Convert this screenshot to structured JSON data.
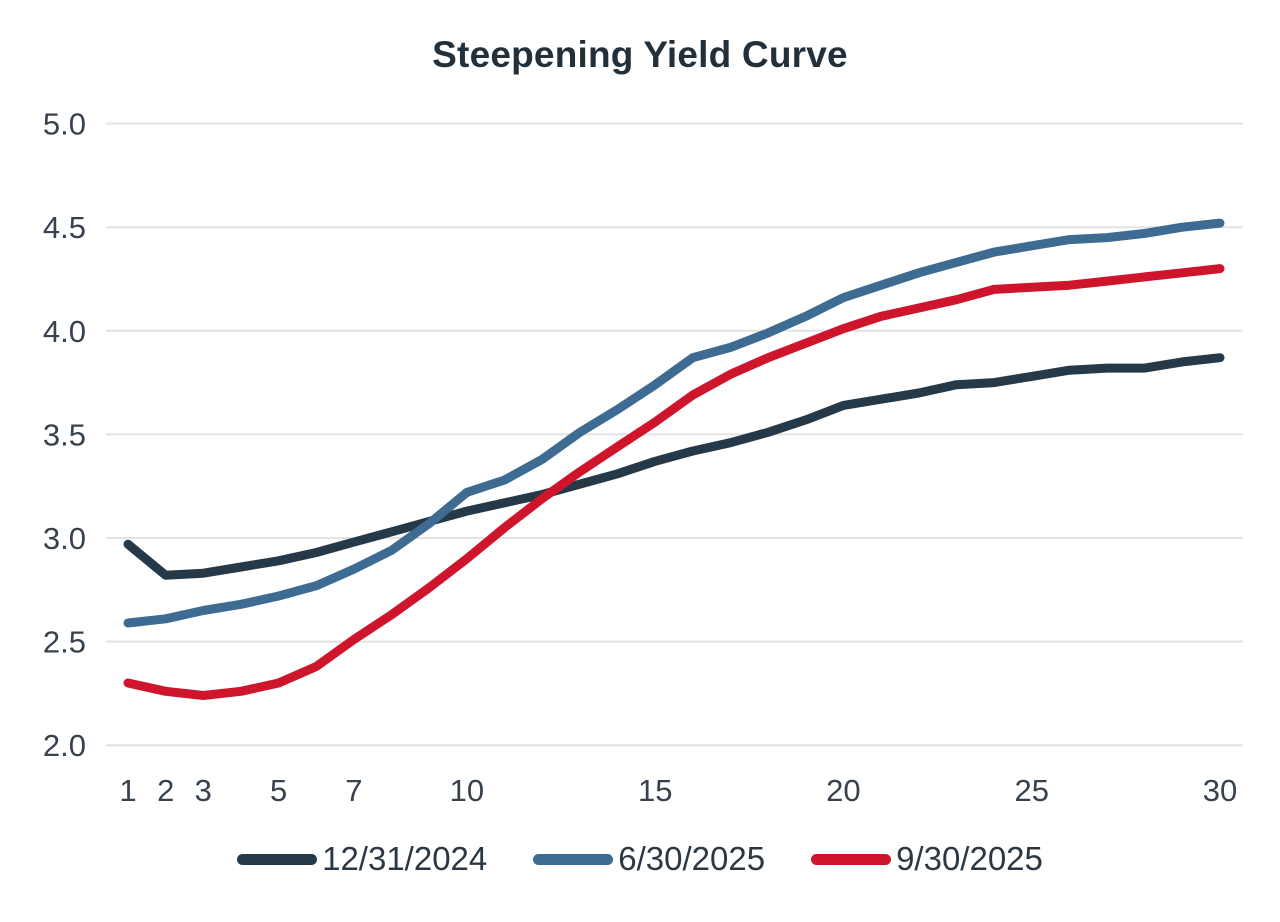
{
  "title": "Steepening Yield Curve",
  "colors": {
    "background": "#ffffff",
    "title_text": "#22303c",
    "axis_label_text": "#38424e",
    "gridline": "#e3e3e3",
    "legend_text": "#2b3844"
  },
  "chart_data": {
    "type": "line",
    "title": "Steepening Yield Curve",
    "xlabel": "",
    "ylabel": "",
    "xlim": [
      1,
      30
    ],
    "ylim": [
      2.0,
      5.0
    ],
    "grid": "horizontal-only",
    "legend_position": "bottom",
    "x_ticks": [
      1,
      2,
      3,
      5,
      7,
      10,
      15,
      20,
      25,
      30
    ],
    "y_ticks": [
      5.0,
      4.5,
      4.0,
      3.5,
      3.0,
      2.5,
      2.0
    ],
    "x": [
      1,
      2,
      3,
      4,
      5,
      6,
      7,
      8,
      9,
      10,
      11,
      12,
      13,
      14,
      15,
      16,
      17,
      18,
      19,
      20,
      21,
      22,
      23,
      24,
      25,
      26,
      27,
      28,
      29,
      30
    ],
    "series": [
      {
        "name": "12/31/2024",
        "color": "#263949",
        "values": [
          2.97,
          2.82,
          2.83,
          2.86,
          2.89,
          2.93,
          2.98,
          3.03,
          3.08,
          3.13,
          3.17,
          3.21,
          3.26,
          3.31,
          3.37,
          3.42,
          3.46,
          3.51,
          3.57,
          3.64,
          3.67,
          3.7,
          3.74,
          3.75,
          3.78,
          3.81,
          3.82,
          3.82,
          3.85,
          3.87
        ]
      },
      {
        "name": "6/30/2025",
        "color": "#3e6b92",
        "values": [
          2.59,
          2.61,
          2.65,
          2.68,
          2.72,
          2.77,
          2.85,
          2.94,
          3.07,
          3.22,
          3.28,
          3.38,
          3.51,
          3.62,
          3.74,
          3.87,
          3.92,
          3.99,
          4.07,
          4.16,
          4.22,
          4.28,
          4.33,
          4.38,
          4.41,
          4.44,
          4.45,
          4.47,
          4.5,
          4.52
        ]
      },
      {
        "name": "9/30/2025",
        "color": "#cf152c",
        "values": [
          2.3,
          2.26,
          2.24,
          2.26,
          2.3,
          2.38,
          2.51,
          2.63,
          2.76,
          2.9,
          3.05,
          3.19,
          3.32,
          3.44,
          3.56,
          3.69,
          3.79,
          3.87,
          3.94,
          4.01,
          4.07,
          4.11,
          4.15,
          4.2,
          4.21,
          4.22,
          4.24,
          4.26,
          4.28,
          4.3
        ]
      }
    ]
  }
}
